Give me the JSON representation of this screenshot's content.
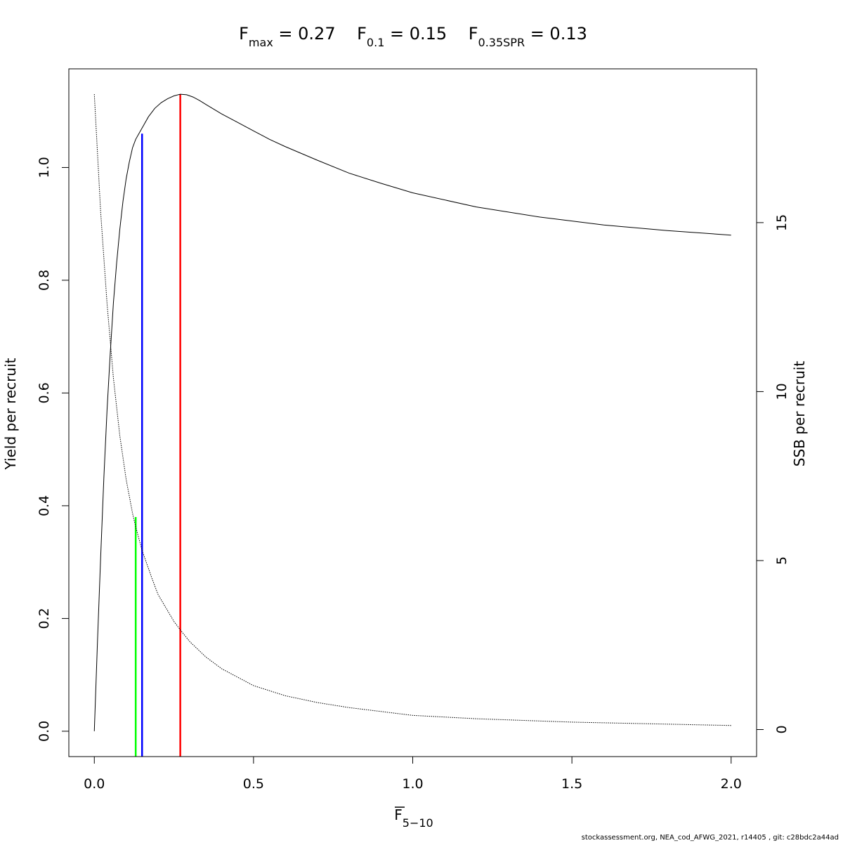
{
  "chart_data": {
    "type": "line",
    "title_parts": [
      {
        "base": "F",
        "sub": "max",
        "rest": " = 0.27"
      },
      {
        "base": "F",
        "sub": "0.1",
        "rest": " = 0.15"
      },
      {
        "base": "F",
        "sub": "0.35SPR",
        "rest": " = 0.13"
      }
    ],
    "xlabel": {
      "base": "F",
      "sub": "5−10"
    },
    "ylabel": "Yield per recruit",
    "y2label": "SSB per recruit",
    "xlim": [
      -0.08,
      2.08
    ],
    "ylim": [
      -0.045,
      1.175
    ],
    "y2lim": [
      -0.8,
      19.55
    ],
    "x_ticks": [
      0.0,
      0.5,
      1.0,
      1.5,
      2.0
    ],
    "x_tick_labels": [
      "0.0",
      "0.5",
      "1.0",
      "1.5",
      "2.0"
    ],
    "y_ticks": [
      0.0,
      0.2,
      0.4,
      0.6,
      0.8,
      1.0
    ],
    "y_tick_labels": [
      "0.0",
      "0.2",
      "0.4",
      "0.6",
      "0.8",
      "1.0"
    ],
    "y2_ticks": [
      0,
      5,
      10,
      15
    ],
    "y2_tick_labels": [
      "0",
      "5",
      "10",
      "15"
    ],
    "series": [
      {
        "axis": "left",
        "style": "solid",
        "color": "#000000",
        "x": [
          0,
          0.01,
          0.02,
          0.03,
          0.04,
          0.05,
          0.06,
          0.07,
          0.08,
          0.09,
          0.1,
          0.11,
          0.12,
          0.13,
          0.14,
          0.15,
          0.17,
          0.19,
          0.21,
          0.23,
          0.25,
          0.27,
          0.29,
          0.31,
          0.33,
          0.35,
          0.4,
          0.45,
          0.5,
          0.55,
          0.6,
          0.7,
          0.8,
          0.9,
          1.0,
          1.2,
          1.4,
          1.6,
          1.8,
          2.0
        ],
        "values": [
          0,
          0.16,
          0.31,
          0.45,
          0.57,
          0.67,
          0.76,
          0.83,
          0.89,
          0.94,
          0.98,
          1.01,
          1.035,
          1.05,
          1.06,
          1.07,
          1.09,
          1.105,
          1.115,
          1.122,
          1.127,
          1.13,
          1.129,
          1.125,
          1.119,
          1.112,
          1.095,
          1.08,
          1.065,
          1.05,
          1.037,
          1.013,
          0.99,
          0.972,
          0.955,
          0.93,
          0.912,
          0.898,
          0.888,
          0.88
        ]
      },
      {
        "axis": "right",
        "style": "dotted",
        "color": "#000000",
        "x": [
          0,
          0.02,
          0.04,
          0.06,
          0.08,
          0.1,
          0.12,
          0.13,
          0.15,
          0.18,
          0.2,
          0.25,
          0.27,
          0.3,
          0.35,
          0.4,
          0.5,
          0.6,
          0.7,
          0.8,
          1.0,
          1.2,
          1.5,
          1.8,
          2.0
        ],
        "values": [
          18.8,
          15.3,
          12.6,
          10.4,
          8.7,
          7.4,
          6.4,
          6.0,
          5.3,
          4.5,
          4.0,
          3.2,
          2.95,
          2.6,
          2.15,
          1.8,
          1.3,
          1.0,
          0.8,
          0.65,
          0.42,
          0.32,
          0.22,
          0.16,
          0.12
        ]
      }
    ],
    "reference_lines": [
      {
        "name": "F0.35SPR",
        "x": 0.13,
        "y_top": 0.38,
        "color": "#00ff00"
      },
      {
        "name": "F0.1",
        "x": 0.15,
        "y_top": 1.06,
        "color": "#0000ff"
      },
      {
        "name": "Fmax",
        "x": 0.27,
        "y_top": 1.13,
        "color": "#ff0000"
      }
    ],
    "grid": false,
    "legend": "none"
  },
  "footer_text": "stockassessment.org, NEA_cod_AFWG_2021, r14405 , git: c28bdc2a44ad"
}
